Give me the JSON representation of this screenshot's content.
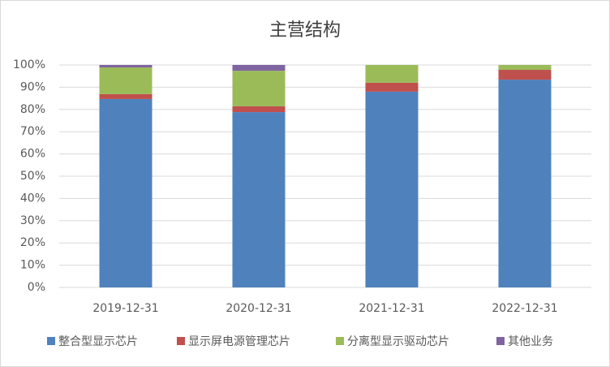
{
  "chart_data": {
    "type": "stacked_bar",
    "title": "主营结构",
    "categories": [
      "2019-12-31",
      "2020-12-31",
      "2021-12-31",
      "2022-12-31"
    ],
    "series": [
      {
        "name": "整合型显示芯片",
        "color": "#4f81bd",
        "values": [
          84.7,
          78.8,
          88.0,
          93.4
        ]
      },
      {
        "name": "显示屏电源管理芯片",
        "color": "#c0504d",
        "values": [
          2.2,
          2.6,
          4.0,
          4.4
        ]
      },
      {
        "name": "分离型显示驱动芯片",
        "color": "#9bbb59",
        "values": [
          12.0,
          16.0,
          8.0,
          2.2
        ]
      },
      {
        "name": "其他业务",
        "color": "#8064a2",
        "values": [
          1.1,
          2.6,
          0,
          0
        ]
      }
    ],
    "ylim": [
      0,
      100
    ],
    "yticks": [
      {
        "value": 0,
        "label": "0%"
      },
      {
        "value": 10,
        "label": "10%"
      },
      {
        "value": 20,
        "label": "20%"
      },
      {
        "value": 30,
        "label": "30%"
      },
      {
        "value": 40,
        "label": "40%"
      },
      {
        "value": 50,
        "label": "50%"
      },
      {
        "value": 60,
        "label": "60%"
      },
      {
        "value": 70,
        "label": "70%"
      },
      {
        "value": 80,
        "label": "80%"
      },
      {
        "value": 90,
        "label": "90%"
      },
      {
        "value": 100,
        "label": "100%"
      }
    ],
    "grid": true,
    "legend": "bottom"
  }
}
